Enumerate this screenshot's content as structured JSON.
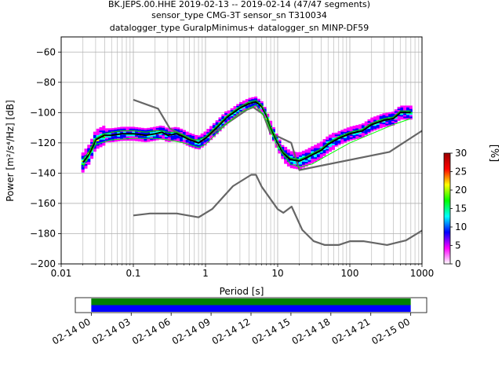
{
  "chart_data": {
    "type": "scatter",
    "title_lines": [
      "BK.JEPS.00.HHE   2019-02-13 -- 2019-02-14  (47/47 segments)",
      "sensor_type CMG-3T sensor_sn T310034",
      "datalogger_type GuralpMinimus+ datalogger_sn MINP-DF59"
    ],
    "xlabel": "Period [s]",
    "ylabel": "Power [m²/s⁴/Hz] [dB]",
    "x_scale": "log",
    "xlim": [
      0.01,
      1000
    ],
    "ylim": [
      -200,
      -50
    ],
    "x_ticks": [
      {
        "value": 0.01,
        "label": "0.01"
      },
      {
        "value": 0.1,
        "label": "0.1"
      },
      {
        "value": 1,
        "label": "1"
      },
      {
        "value": 10,
        "label": "10"
      },
      {
        "value": 100,
        "label": "100"
      },
      {
        "value": 1000,
        "label": "1000"
      }
    ],
    "y_ticks": [
      {
        "value": -60,
        "label": "−60"
      },
      {
        "value": -80,
        "label": "−80"
      },
      {
        "value": -100,
        "label": "−100"
      },
      {
        "value": -120,
        "label": "−120"
      },
      {
        "value": -140,
        "label": "−140"
      },
      {
        "value": -160,
        "label": "−160"
      },
      {
        "value": -180,
        "label": "−180"
      },
      {
        "value": -200,
        "label": "−200"
      }
    ],
    "grid": true,
    "colorbar": {
      "label": "[%]",
      "range": [
        0,
        30
      ],
      "ticks": [
        {
          "value": 0,
          "label": "0"
        },
        {
          "value": 5,
          "label": "5"
        },
        {
          "value": 10,
          "label": "10"
        },
        {
          "value": 15,
          "label": "15"
        },
        {
          "value": 20,
          "label": "20"
        },
        {
          "value": 25,
          "label": "25"
        },
        {
          "value": 30,
          "label": "30"
        }
      ],
      "colors": [
        "#ffffff",
        "#ff00ff",
        "#0000ff",
        "#00ffff",
        "#00ff00",
        "#ffff00",
        "#ff0000",
        "#990000"
      ]
    },
    "series": [
      {
        "kind": "high-noise-model",
        "color": "#666666",
        "x": [
          0.1,
          0.22,
          0.32,
          0.8,
          3.8,
          4.6,
          6.3,
          7.9,
          15.4,
          20,
          354.8,
          1000
        ],
        "y": [
          -91.5,
          -97.4,
          -110.5,
          -120,
          -98,
          -96.5,
          -101,
          -113.5,
          -120,
          -138,
          -126,
          -112
        ]
      },
      {
        "kind": "low-noise-model",
        "color": "#666666",
        "x": [
          0.1,
          0.17,
          0.4,
          0.8,
          1.24,
          2.4,
          4.3,
          5,
          6,
          10,
          12,
          15.6,
          21.9,
          31.6,
          45,
          70,
          101,
          154,
          328,
          600,
          1000
        ],
        "y": [
          -168,
          -166.7,
          -166.7,
          -169.2,
          -163.7,
          -148.6,
          -141.1,
          -141.1,
          -149,
          -163.8,
          -166.2,
          -162.1,
          -177.5,
          -185,
          -187.5,
          -187.5,
          -185,
          -185,
          -187.5,
          -184.5,
          -178
        ]
      },
      {
        "kind": "mode",
        "color": "#000000",
        "x": [
          0.02,
          0.025,
          0.03,
          0.04,
          0.05,
          0.07,
          0.1,
          0.15,
          0.2,
          0.25,
          0.3,
          0.4,
          0.5,
          0.6,
          0.7,
          0.8,
          1,
          1.5,
          2,
          3,
          4,
          5,
          6,
          7,
          8,
          10,
          12,
          15,
          20,
          25,
          30,
          40,
          50,
          70,
          100,
          150,
          200,
          300,
          400,
          500,
          700
        ],
        "y": [
          -133,
          -127,
          -118,
          -115,
          -115,
          -114,
          -114,
          -115,
          -114,
          -113,
          -115,
          -114,
          -116,
          -118,
          -119,
          -120,
          -117,
          -109,
          -103,
          -97,
          -94,
          -93,
          -96,
          -102,
          -110,
          -120,
          -127,
          -131,
          -132,
          -130,
          -128,
          -125,
          -121,
          -117,
          -114,
          -112,
          -108,
          -105,
          -104,
          -100,
          -100
        ]
      },
      {
        "kind": "mean",
        "color": "#00cc00",
        "x": [
          0.02,
          0.025,
          0.03,
          0.04,
          0.05,
          0.07,
          0.1,
          0.15,
          0.2,
          0.25,
          0.3,
          0.4,
          0.5,
          0.6,
          0.7,
          0.8,
          1,
          1.5,
          2,
          3,
          4,
          5,
          6,
          7,
          8,
          10,
          12,
          15,
          20,
          25,
          30,
          40,
          50,
          70,
          100,
          150,
          200,
          300,
          400,
          500,
          700
        ],
        "y": [
          -131,
          -125,
          -117,
          -114,
          -113,
          -112,
          -112,
          -113,
          -112,
          -112,
          -113,
          -113,
          -115,
          -117,
          -118,
          -118,
          -116,
          -108,
          -102,
          -96,
          -93,
          -92,
          -95,
          -101,
          -109,
          -119,
          -126,
          -130,
          -131,
          -129,
          -127,
          -124,
          -120,
          -116,
          -113,
          -111,
          -107,
          -104,
          -103,
          -99,
          -99
        ]
      },
      {
        "kind": "min",
        "color": "#00ff00",
        "x": [
          0.02,
          0.03,
          0.05,
          0.1,
          0.2,
          0.3,
          0.5,
          0.8,
          1,
          2,
          3,
          5,
          7,
          10,
          15,
          20,
          30,
          50,
          100,
          200,
          400,
          700
        ],
        "y": [
          -136,
          -121,
          -118,
          -117,
          -117,
          -118,
          -120,
          -123,
          -121,
          -107,
          -100,
          -95,
          -105,
          -123,
          -134,
          -136,
          -134,
          -128,
          -120,
          -114,
          -108,
          -104
        ]
      }
    ],
    "timeline": {
      "start_label": "02-14 00",
      "tick_labels": [
        "02-14 00",
        "02-14 03",
        "02-14 06",
        "02-14 09",
        "02-14 12",
        "02-14 15",
        "02-14 18",
        "02-14 21",
        "02-15 00"
      ],
      "tick_hours": [
        0,
        3,
        6,
        9,
        12,
        15,
        18,
        21,
        24
      ],
      "range_hours": [
        -1.2,
        25.2
      ],
      "bars": [
        {
          "color": "#008000",
          "from_hour": 0,
          "to_hour": 24
        },
        {
          "color": "#0000ff",
          "from_hour": 0,
          "to_hour": 24
        }
      ]
    }
  }
}
